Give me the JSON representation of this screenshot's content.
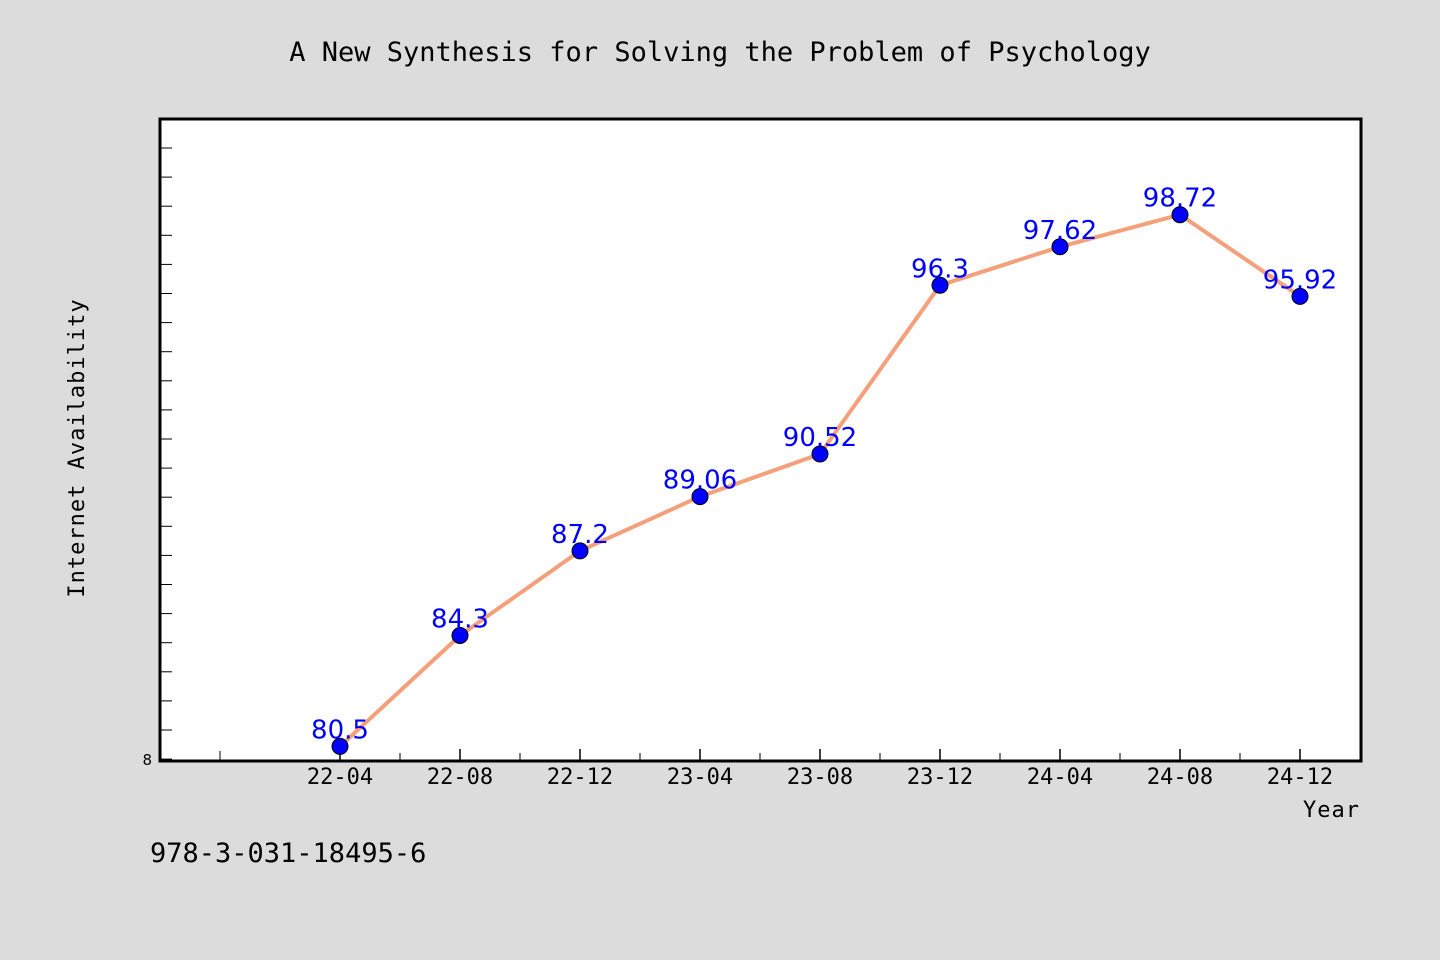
{
  "chart_data": {
    "type": "line",
    "title": "A New Synthesis for Solving the Problem of Psychology",
    "xlabel": "Year",
    "ylabel": "Internet Availability",
    "categories": [
      "22-04",
      "22-08",
      "22-12",
      "23-04",
      "23-08",
      "23-12",
      "24-04",
      "24-08",
      "24-12"
    ],
    "series": [
      {
        "values": [
          80.5,
          84.3,
          87.2,
          89.06,
          90.52,
          96.3,
          97.62,
          98.72,
          95.92
        ]
      }
    ],
    "data_labels": [
      "80.5",
      "84.3",
      "87.2",
      "89.06",
      "90.52",
      "96.3",
      "97.62",
      "98.72",
      "95.92"
    ],
    "y_tick_label": "8",
    "ylim": [
      80,
      102
    ],
    "grid": false,
    "line_color": "#f4a07a",
    "marker_color": "#0000ff",
    "label_color": "#0000ff",
    "background_color": "#dcdcdc",
    "plot_background": "#ffffff"
  },
  "footer": {
    "isbn": "978-3-031-18495-6"
  }
}
